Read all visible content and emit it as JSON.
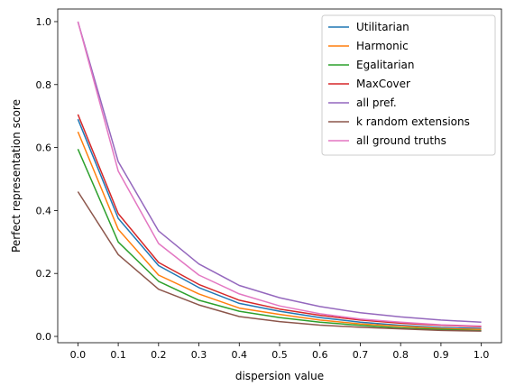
{
  "chart_data": {
    "type": "line",
    "title": "",
    "xlabel": "dispersion value",
    "ylabel": "Perfect representation score",
    "x": [
      0.0,
      0.1,
      0.2,
      0.3,
      0.4,
      0.5,
      0.6,
      0.7,
      0.8,
      0.9,
      1.0
    ],
    "xticks": [
      "0.0",
      "0.1",
      "0.2",
      "0.3",
      "0.4",
      "0.5",
      "0.6",
      "0.7",
      "0.8",
      "0.9",
      "1.0"
    ],
    "yticks": [
      "0.0",
      "0.2",
      "0.4",
      "0.6",
      "0.8",
      "1.0"
    ],
    "xlim": [
      -0.05,
      1.05
    ],
    "ylim": [
      -0.02,
      1.04
    ],
    "grid": false,
    "legend_position": "top-right",
    "series": [
      {
        "name": "Utilitarian",
        "color": "#1f77b4",
        "values": [
          0.69,
          0.375,
          0.225,
          0.155,
          0.105,
          0.08,
          0.06,
          0.045,
          0.035,
          0.028,
          0.025
        ]
      },
      {
        "name": "Harmonic",
        "color": "#ff7f0e",
        "values": [
          0.65,
          0.34,
          0.195,
          0.135,
          0.09,
          0.07,
          0.052,
          0.04,
          0.032,
          0.025,
          0.022
        ]
      },
      {
        "name": "Egalitarian",
        "color": "#2ca02c",
        "values": [
          0.595,
          0.3,
          0.175,
          0.115,
          0.08,
          0.06,
          0.045,
          0.035,
          0.027,
          0.022,
          0.018
        ]
      },
      {
        "name": "MaxCover",
        "color": "#d62728",
        "values": [
          0.705,
          0.39,
          0.235,
          0.165,
          0.115,
          0.087,
          0.067,
          0.052,
          0.042,
          0.035,
          0.031
        ]
      },
      {
        "name": "all pref.",
        "color": "#9467bd",
        "values": [
          1.0,
          0.555,
          0.335,
          0.23,
          0.162,
          0.123,
          0.095,
          0.075,
          0.062,
          0.052,
          0.045
        ]
      },
      {
        "name": "k random extensions",
        "color": "#8c564b",
        "values": [
          0.46,
          0.26,
          0.15,
          0.1,
          0.063,
          0.047,
          0.036,
          0.029,
          0.024,
          0.019,
          0.017
        ]
      },
      {
        "name": "all ground truths",
        "color": "#e377c2",
        "values": [
          1.0,
          0.525,
          0.295,
          0.195,
          0.135,
          0.097,
          0.072,
          0.055,
          0.045,
          0.037,
          0.033
        ]
      }
    ]
  }
}
